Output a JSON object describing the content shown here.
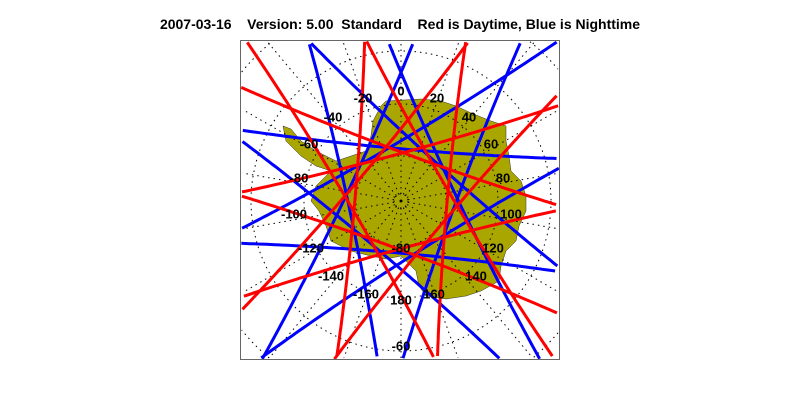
{
  "title": {
    "date": "2007-03-16",
    "version": "Version: 5.00",
    "mode": "Standard",
    "legend": "Red is Daytime, Blue is Nighttime"
  },
  "colors": {
    "day": "#ff0000",
    "night": "#0000ff",
    "land": "#aaa600",
    "grid": "#000000"
  },
  "map": {
    "projection": "south polar stereographic",
    "longitude_labels": [
      "0",
      "20",
      "-20",
      "40",
      "-40",
      "60",
      "-60",
      "80",
      "-80",
      "100",
      "-100",
      "120",
      "-120",
      "140",
      "-140",
      "160",
      "-160",
      "180"
    ],
    "latitude_labels": [
      "-80",
      "-60"
    ]
  }
}
